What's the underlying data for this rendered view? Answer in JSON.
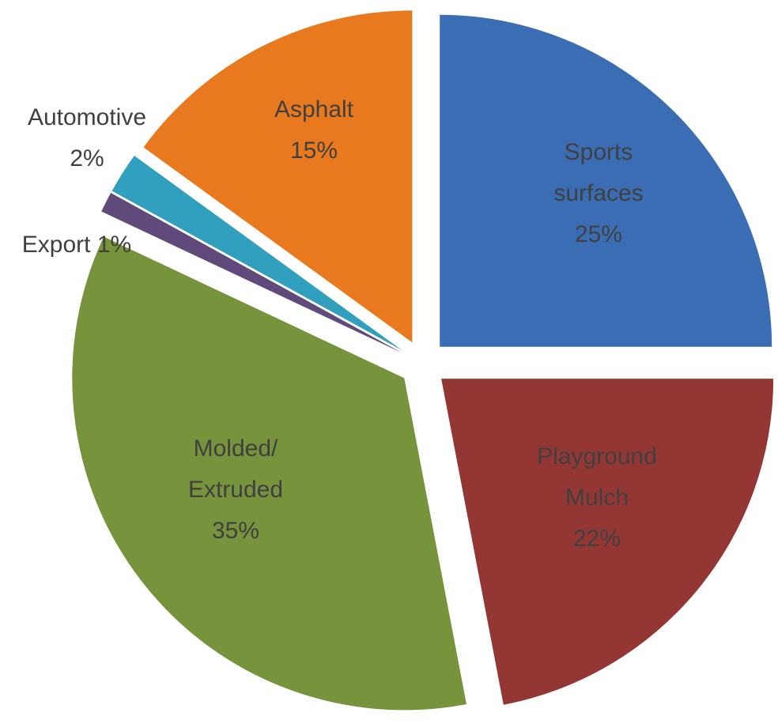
{
  "chart_data": {
    "type": "pie",
    "categories": [
      "Sports surfaces",
      "Playground Mulch",
      "Molded/ Extruded",
      "Export",
      "Automotive",
      "Asphalt"
    ],
    "values": [
      25,
      22,
      35,
      1,
      2,
      15
    ],
    "value_labels": [
      "25%",
      "22%",
      "35%",
      "1%",
      "2%",
      "15%"
    ],
    "colors": [
      "#3a6db3",
      "#943634",
      "#77933c",
      "#604a7b",
      "#31a0be",
      "#e8791f"
    ]
  }
}
